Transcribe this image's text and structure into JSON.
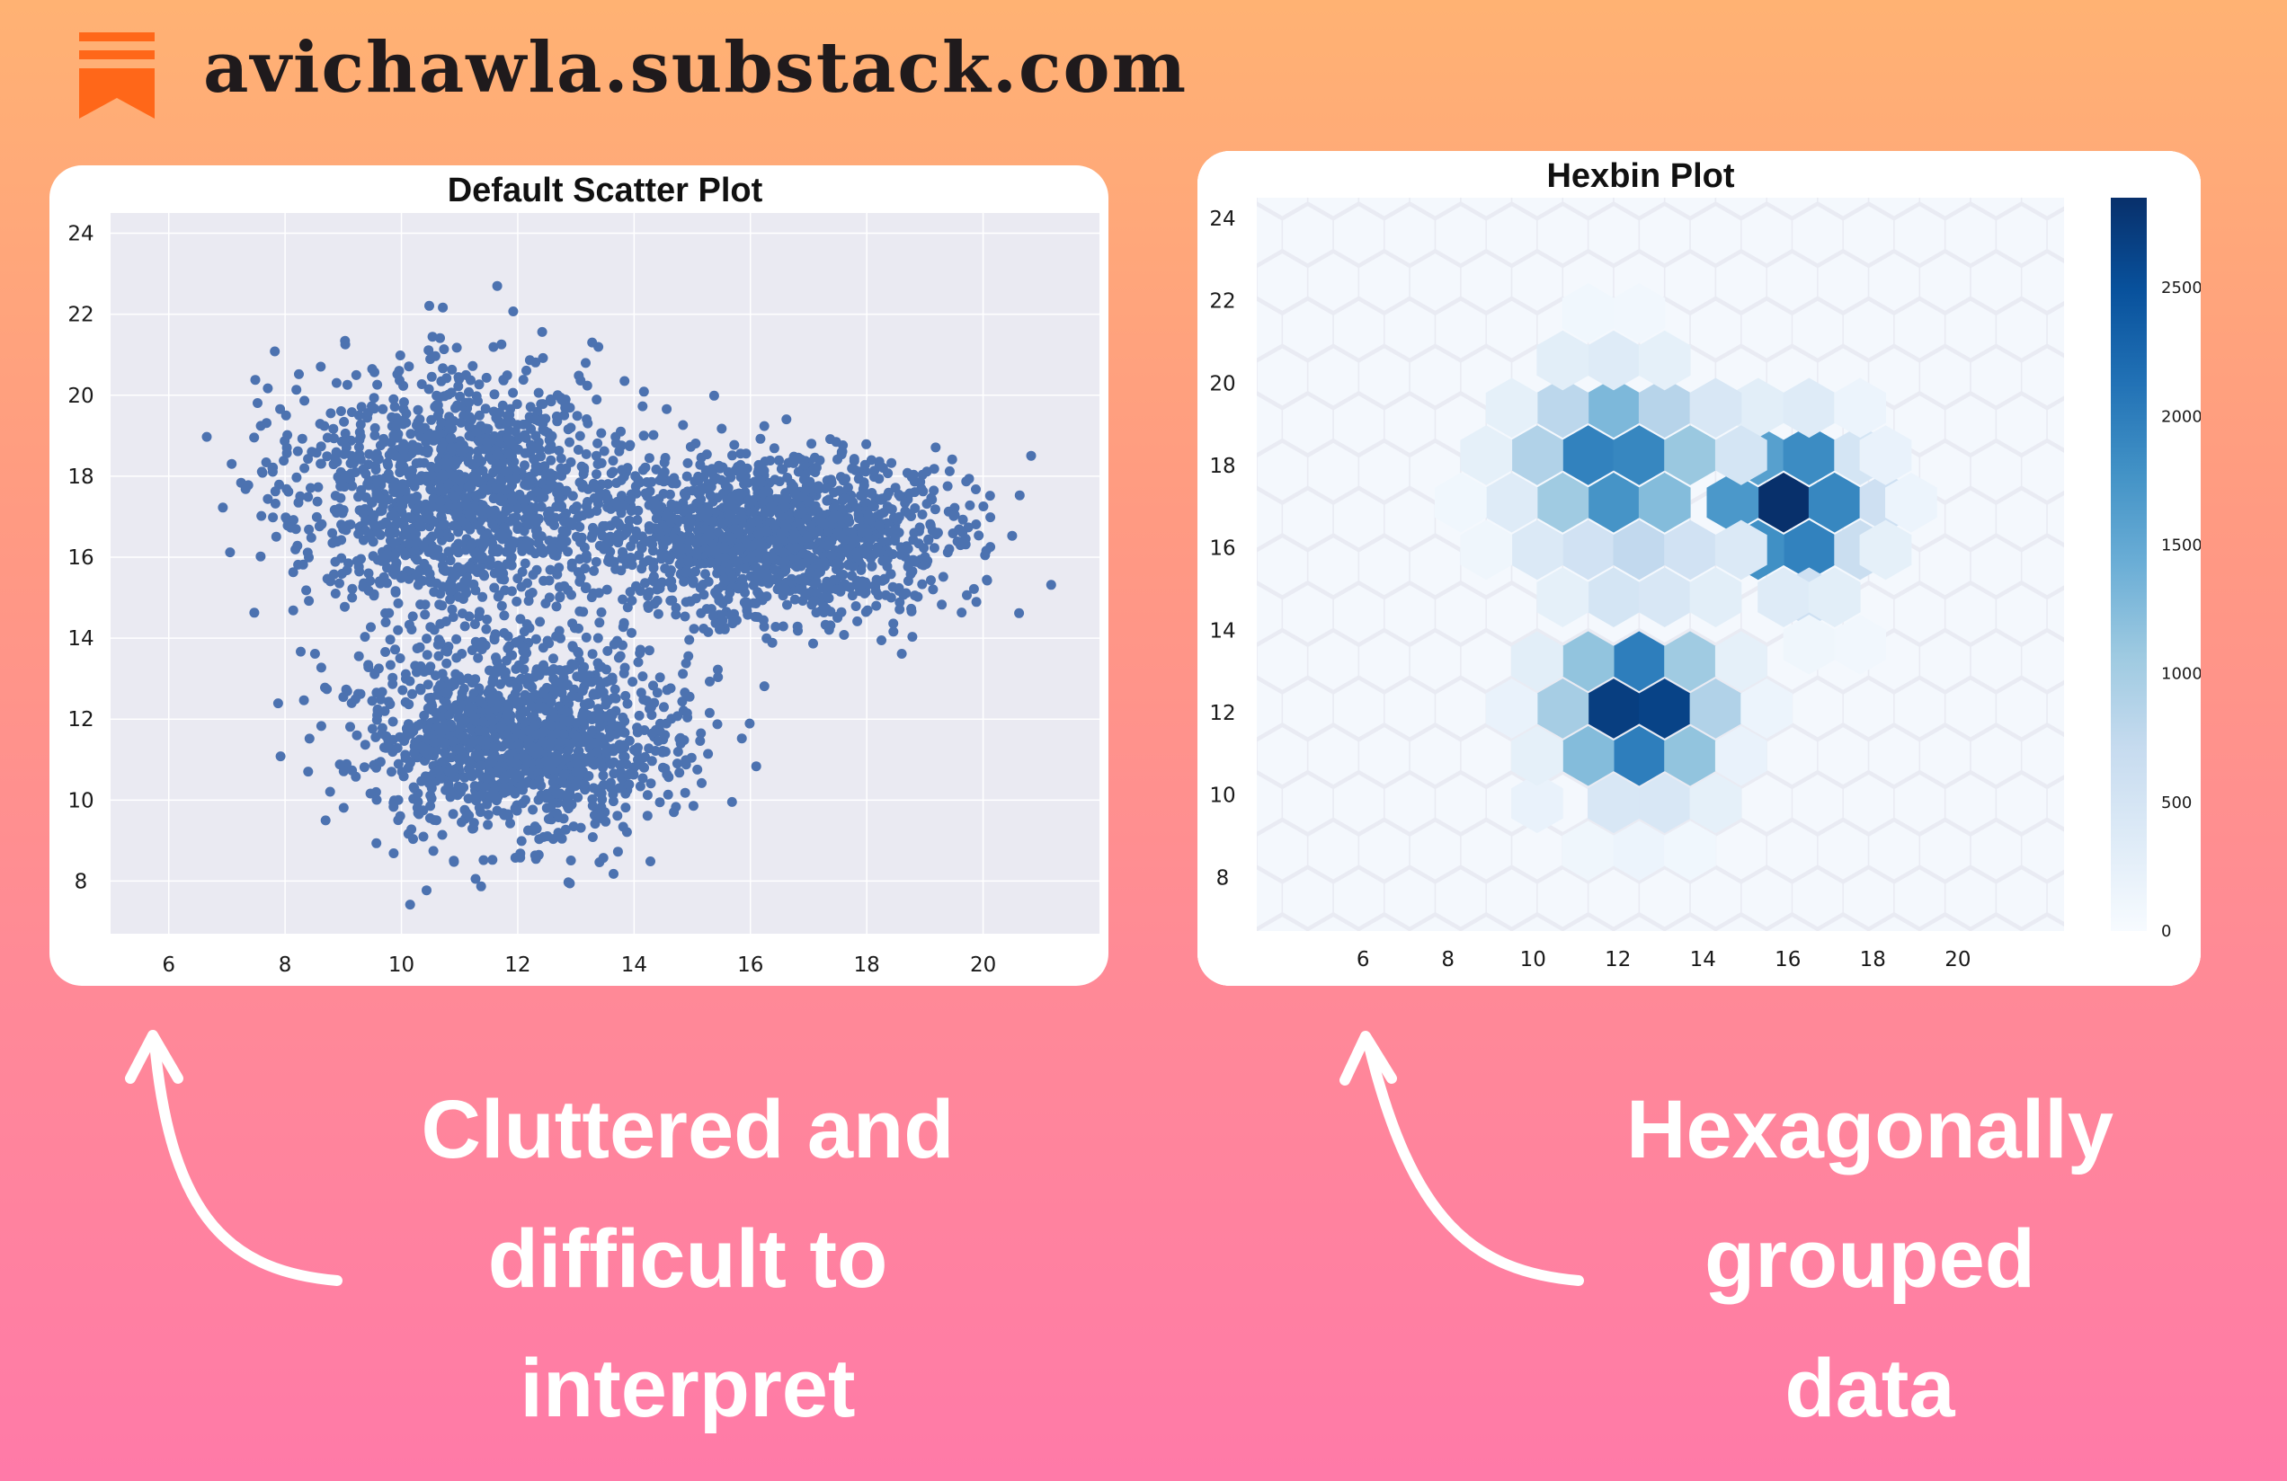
{
  "brand": {
    "name": "avichawla.substack.com",
    "logo_icon": "substack-logo-icon",
    "logo_color": "#ff6719"
  },
  "captions": {
    "left": [
      "Cluttered and",
      "difficult to",
      "interpret"
    ],
    "right": [
      "Hexagonally",
      "grouped",
      "data"
    ]
  },
  "colors": {
    "scatter_point": "#4c72b0",
    "plot_background": "#eaeaf2",
    "grid": "#ffffff",
    "text": "#ffffff"
  },
  "chart_data": [
    {
      "type": "scatter",
      "title": "Default Scatter Plot",
      "xlabel": "",
      "ylabel": "",
      "xlim": [
        5,
        22
      ],
      "ylim": [
        6.7,
        24.5
      ],
      "xticks": [
        6,
        8,
        10,
        12,
        14,
        16,
        18,
        20
      ],
      "yticks": [
        8,
        10,
        12,
        14,
        16,
        18,
        20,
        22,
        24
      ],
      "grid": true,
      "clusters": [
        {
          "center": [
            11,
            17.5
          ],
          "std": [
            1.5,
            1.6
          ]
        },
        {
          "center": [
            12,
            11.5
          ],
          "std": [
            1.3,
            1.2
          ]
        },
        {
          "center": [
            16.5,
            16.5
          ],
          "std": [
            1.5,
            1.0
          ]
        }
      ],
      "point_count_approx": 100000
    },
    {
      "type": "heatmap",
      "subtype": "hexbin",
      "title": "Hexbin Plot",
      "xlim": [
        3.5,
        22.5
      ],
      "ylim": [
        6.7,
        24.5
      ],
      "xticks": [
        6,
        8,
        10,
        12,
        14,
        16,
        18,
        20
      ],
      "yticks": [
        8,
        10,
        12,
        14,
        16,
        18,
        20,
        22,
        24
      ],
      "colormap": "Blues",
      "colorbar": {
        "min": 0,
        "max": 2850,
        "ticks": [
          0,
          500,
          1000,
          1500,
          2000,
          2500
        ]
      },
      "cells": [
        {
          "x": 11.9,
          "y": 12.1,
          "count": 2700
        },
        {
          "x": 13.1,
          "y": 12.1,
          "count": 2650
        },
        {
          "x": 15.9,
          "y": 17.1,
          "count": 2850
        },
        {
          "x": 12.5,
          "y": 13.25,
          "count": 2000
        },
        {
          "x": 12.5,
          "y": 10.95,
          "count": 2000
        },
        {
          "x": 11.3,
          "y": 18.25,
          "count": 1950
        },
        {
          "x": 12.5,
          "y": 18.25,
          "count": 1900
        },
        {
          "x": 17.1,
          "y": 17.1,
          "count": 1900
        },
        {
          "x": 16.5,
          "y": 15.95,
          "count": 1950
        },
        {
          "x": 11.9,
          "y": 17.1,
          "count": 1750
        },
        {
          "x": 15.3,
          "y": 15.95,
          "count": 1800
        },
        {
          "x": 15.3,
          "y": 18.25,
          "count": 1600
        },
        {
          "x": 16.5,
          "y": 18.25,
          "count": 1850
        },
        {
          "x": 14.7,
          "y": 17.1,
          "count": 1700
        },
        {
          "x": 11.9,
          "y": 19.4,
          "count": 1300
        },
        {
          "x": 10.7,
          "y": 12.1,
          "count": 1000
        },
        {
          "x": 14.3,
          "y": 12.1,
          "count": 900
        },
        {
          "x": 11.3,
          "y": 13.25,
          "count": 1150
        },
        {
          "x": 13.7,
          "y": 13.25,
          "count": 1050
        },
        {
          "x": 11.3,
          "y": 10.95,
          "count": 1250
        },
        {
          "x": 13.7,
          "y": 10.95,
          "count": 1150
        },
        {
          "x": 13.1,
          "y": 17.1,
          "count": 1250
        },
        {
          "x": 13.7,
          "y": 18.25,
          "count": 1100
        },
        {
          "x": 10.7,
          "y": 17.1,
          "count": 1050
        },
        {
          "x": 10.1,
          "y": 18.25,
          "count": 900
        },
        {
          "x": 10.7,
          "y": 19.4,
          "count": 800
        },
        {
          "x": 13.1,
          "y": 19.4,
          "count": 850
        },
        {
          "x": 18.3,
          "y": 17.1,
          "count": 600
        },
        {
          "x": 17.7,
          "y": 15.95,
          "count": 650
        },
        {
          "x": 17.7,
          "y": 18.25,
          "count": 500
        },
        {
          "x": 16.5,
          "y": 14.8,
          "count": 600
        },
        {
          "x": 15.3,
          "y": 19.4,
          "count": 300
        },
        {
          "x": 16.5,
          "y": 19.4,
          "count": 350
        },
        {
          "x": 11.3,
          "y": 15.95,
          "count": 550
        },
        {
          "x": 12.5,
          "y": 15.95,
          "count": 750
        },
        {
          "x": 13.7,
          "y": 15.95,
          "count": 550
        },
        {
          "x": 11.9,
          "y": 14.8,
          "count": 500
        },
        {
          "x": 13.1,
          "y": 14.8,
          "count": 450
        },
        {
          "x": 11.9,
          "y": 9.8,
          "count": 450
        },
        {
          "x": 13.1,
          "y": 9.8,
          "count": 450
        },
        {
          "x": 14.3,
          "y": 9.8,
          "count": 250
        },
        {
          "x": 10.1,
          "y": 9.8,
          "count": 200
        },
        {
          "x": 14.3,
          "y": 14.8,
          "count": 300
        },
        {
          "x": 10.7,
          "y": 14.8,
          "count": 250
        },
        {
          "x": 10.1,
          "y": 15.95,
          "count": 400
        },
        {
          "x": 9.5,
          "y": 17.1,
          "count": 350
        },
        {
          "x": 8.9,
          "y": 18.25,
          "count": 250
        },
        {
          "x": 9.5,
          "y": 19.4,
          "count": 250
        },
        {
          "x": 11.9,
          "y": 20.55,
          "count": 350
        },
        {
          "x": 13.1,
          "y": 20.55,
          "count": 250
        },
        {
          "x": 10.7,
          "y": 20.55,
          "count": 300
        },
        {
          "x": 14.3,
          "y": 19.4,
          "count": 450
        },
        {
          "x": 15.9,
          "y": 14.8,
          "count": 350
        },
        {
          "x": 17.1,
          "y": 14.8,
          "count": 300
        },
        {
          "x": 18.3,
          "y": 15.95,
          "count": 250
        },
        {
          "x": 18.9,
          "y": 17.1,
          "count": 150
        },
        {
          "x": 18.3,
          "y": 18.25,
          "count": 200
        },
        {
          "x": 17.7,
          "y": 19.4,
          "count": 150
        },
        {
          "x": 10.1,
          "y": 13.25,
          "count": 300
        },
        {
          "x": 14.9,
          "y": 13.25,
          "count": 250
        },
        {
          "x": 9.5,
          "y": 12.1,
          "count": 200
        },
        {
          "x": 15.5,
          "y": 12.1,
          "count": 150
        },
        {
          "x": 10.1,
          "y": 10.95,
          "count": 250
        },
        {
          "x": 14.9,
          "y": 10.95,
          "count": 200
        },
        {
          "x": 11.3,
          "y": 8.65,
          "count": 120
        },
        {
          "x": 12.5,
          "y": 8.65,
          "count": 150
        },
        {
          "x": 13.7,
          "y": 8.65,
          "count": 100
        },
        {
          "x": 14.9,
          "y": 15.95,
          "count": 400
        },
        {
          "x": 14.9,
          "y": 18.25,
          "count": 500
        },
        {
          "x": 11.3,
          "y": 21.7,
          "count": 100
        },
        {
          "x": 12.5,
          "y": 21.7,
          "count": 90
        },
        {
          "x": 8.9,
          "y": 15.95,
          "count": 120
        },
        {
          "x": 8.3,
          "y": 17.1,
          "count": 100
        },
        {
          "x": 16.5,
          "y": 13.65,
          "count": 120
        },
        {
          "x": 17.7,
          "y": 13.65,
          "count": 80
        }
      ]
    }
  ]
}
